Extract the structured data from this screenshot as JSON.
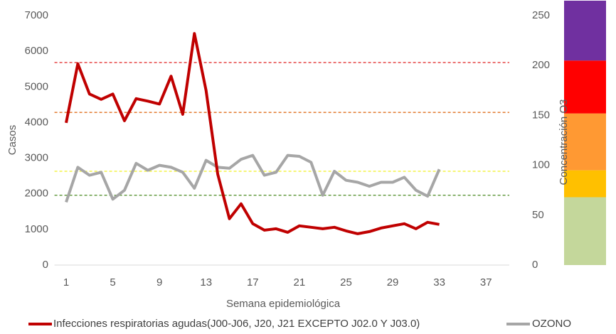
{
  "chart_data": {
    "type": "line",
    "x_label": "Semana epidemiológica",
    "y_label": "Casos",
    "y2_label": "Concentración O3",
    "x": [
      1,
      2,
      3,
      4,
      5,
      6,
      7,
      8,
      9,
      10,
      11,
      12,
      13,
      14,
      15,
      16,
      17,
      18,
      19,
      20,
      21,
      22,
      23,
      24,
      25,
      26,
      27,
      28,
      29,
      30,
      31,
      32,
      33
    ],
    "xlim": [
      0,
      39
    ],
    "xticks": [
      1,
      5,
      9,
      13,
      17,
      21,
      25,
      29,
      33,
      37
    ],
    "ylim": [
      0,
      7000
    ],
    "yticks": [
      0,
      1000,
      2000,
      3000,
      4000,
      5000,
      6000,
      7000
    ],
    "y2lim": [
      0,
      250
    ],
    "y2ticks": [
      0,
      50,
      100,
      150,
      200,
      250
    ],
    "series": [
      {
        "name": "Infecciones respiratorias agudas(J00-J06, J20, J21 EXCEPTO J02.0 Y J03.0)",
        "color": "#c00000",
        "values": [
          3990,
          5650,
          4800,
          4650,
          4800,
          4050,
          4670,
          4600,
          4520,
          5300,
          4230,
          6500,
          4900,
          2550,
          1300,
          1720,
          1160,
          980,
          1020,
          920,
          1100,
          1060,
          1020,
          1060,
          960,
          880,
          940,
          1040,
          1100,
          1160,
          1020,
          1200,
          1140
        ]
      },
      {
        "name": "OZONO",
        "color": "#a6a6a6",
        "axis": "y2",
        "values": [
          63,
          98,
          90,
          93,
          66,
          75,
          102,
          95,
          100,
          98,
          93,
          77,
          105,
          98,
          97,
          106,
          110,
          90,
          93,
          110,
          109,
          103,
          70,
          94,
          85,
          83,
          79,
          83,
          83,
          88,
          75,
          69,
          96
        ]
      }
    ],
    "reference_lines": [
      {
        "value": 203,
        "color": "#e02020",
        "axis": "y2"
      },
      {
        "value": 153,
        "color": "#e07020",
        "axis": "y2"
      },
      {
        "value": 94,
        "color": "#f0f020",
        "axis": "y2"
      },
      {
        "value": 70,
        "color": "#4a8a20",
        "axis": "y2"
      }
    ],
    "bands": [
      {
        "from": 0,
        "to": 68,
        "color": "#c4d79b"
      },
      {
        "from": 68,
        "to": 95,
        "color": "#ffc000"
      },
      {
        "from": 95,
        "to": 152,
        "color": "#ff9933"
      },
      {
        "from": 152,
        "to": 205,
        "color": "#ff0000"
      },
      {
        "from": 205,
        "to": 265,
        "color": "#7030a0"
      }
    ],
    "legend": "bottom"
  }
}
